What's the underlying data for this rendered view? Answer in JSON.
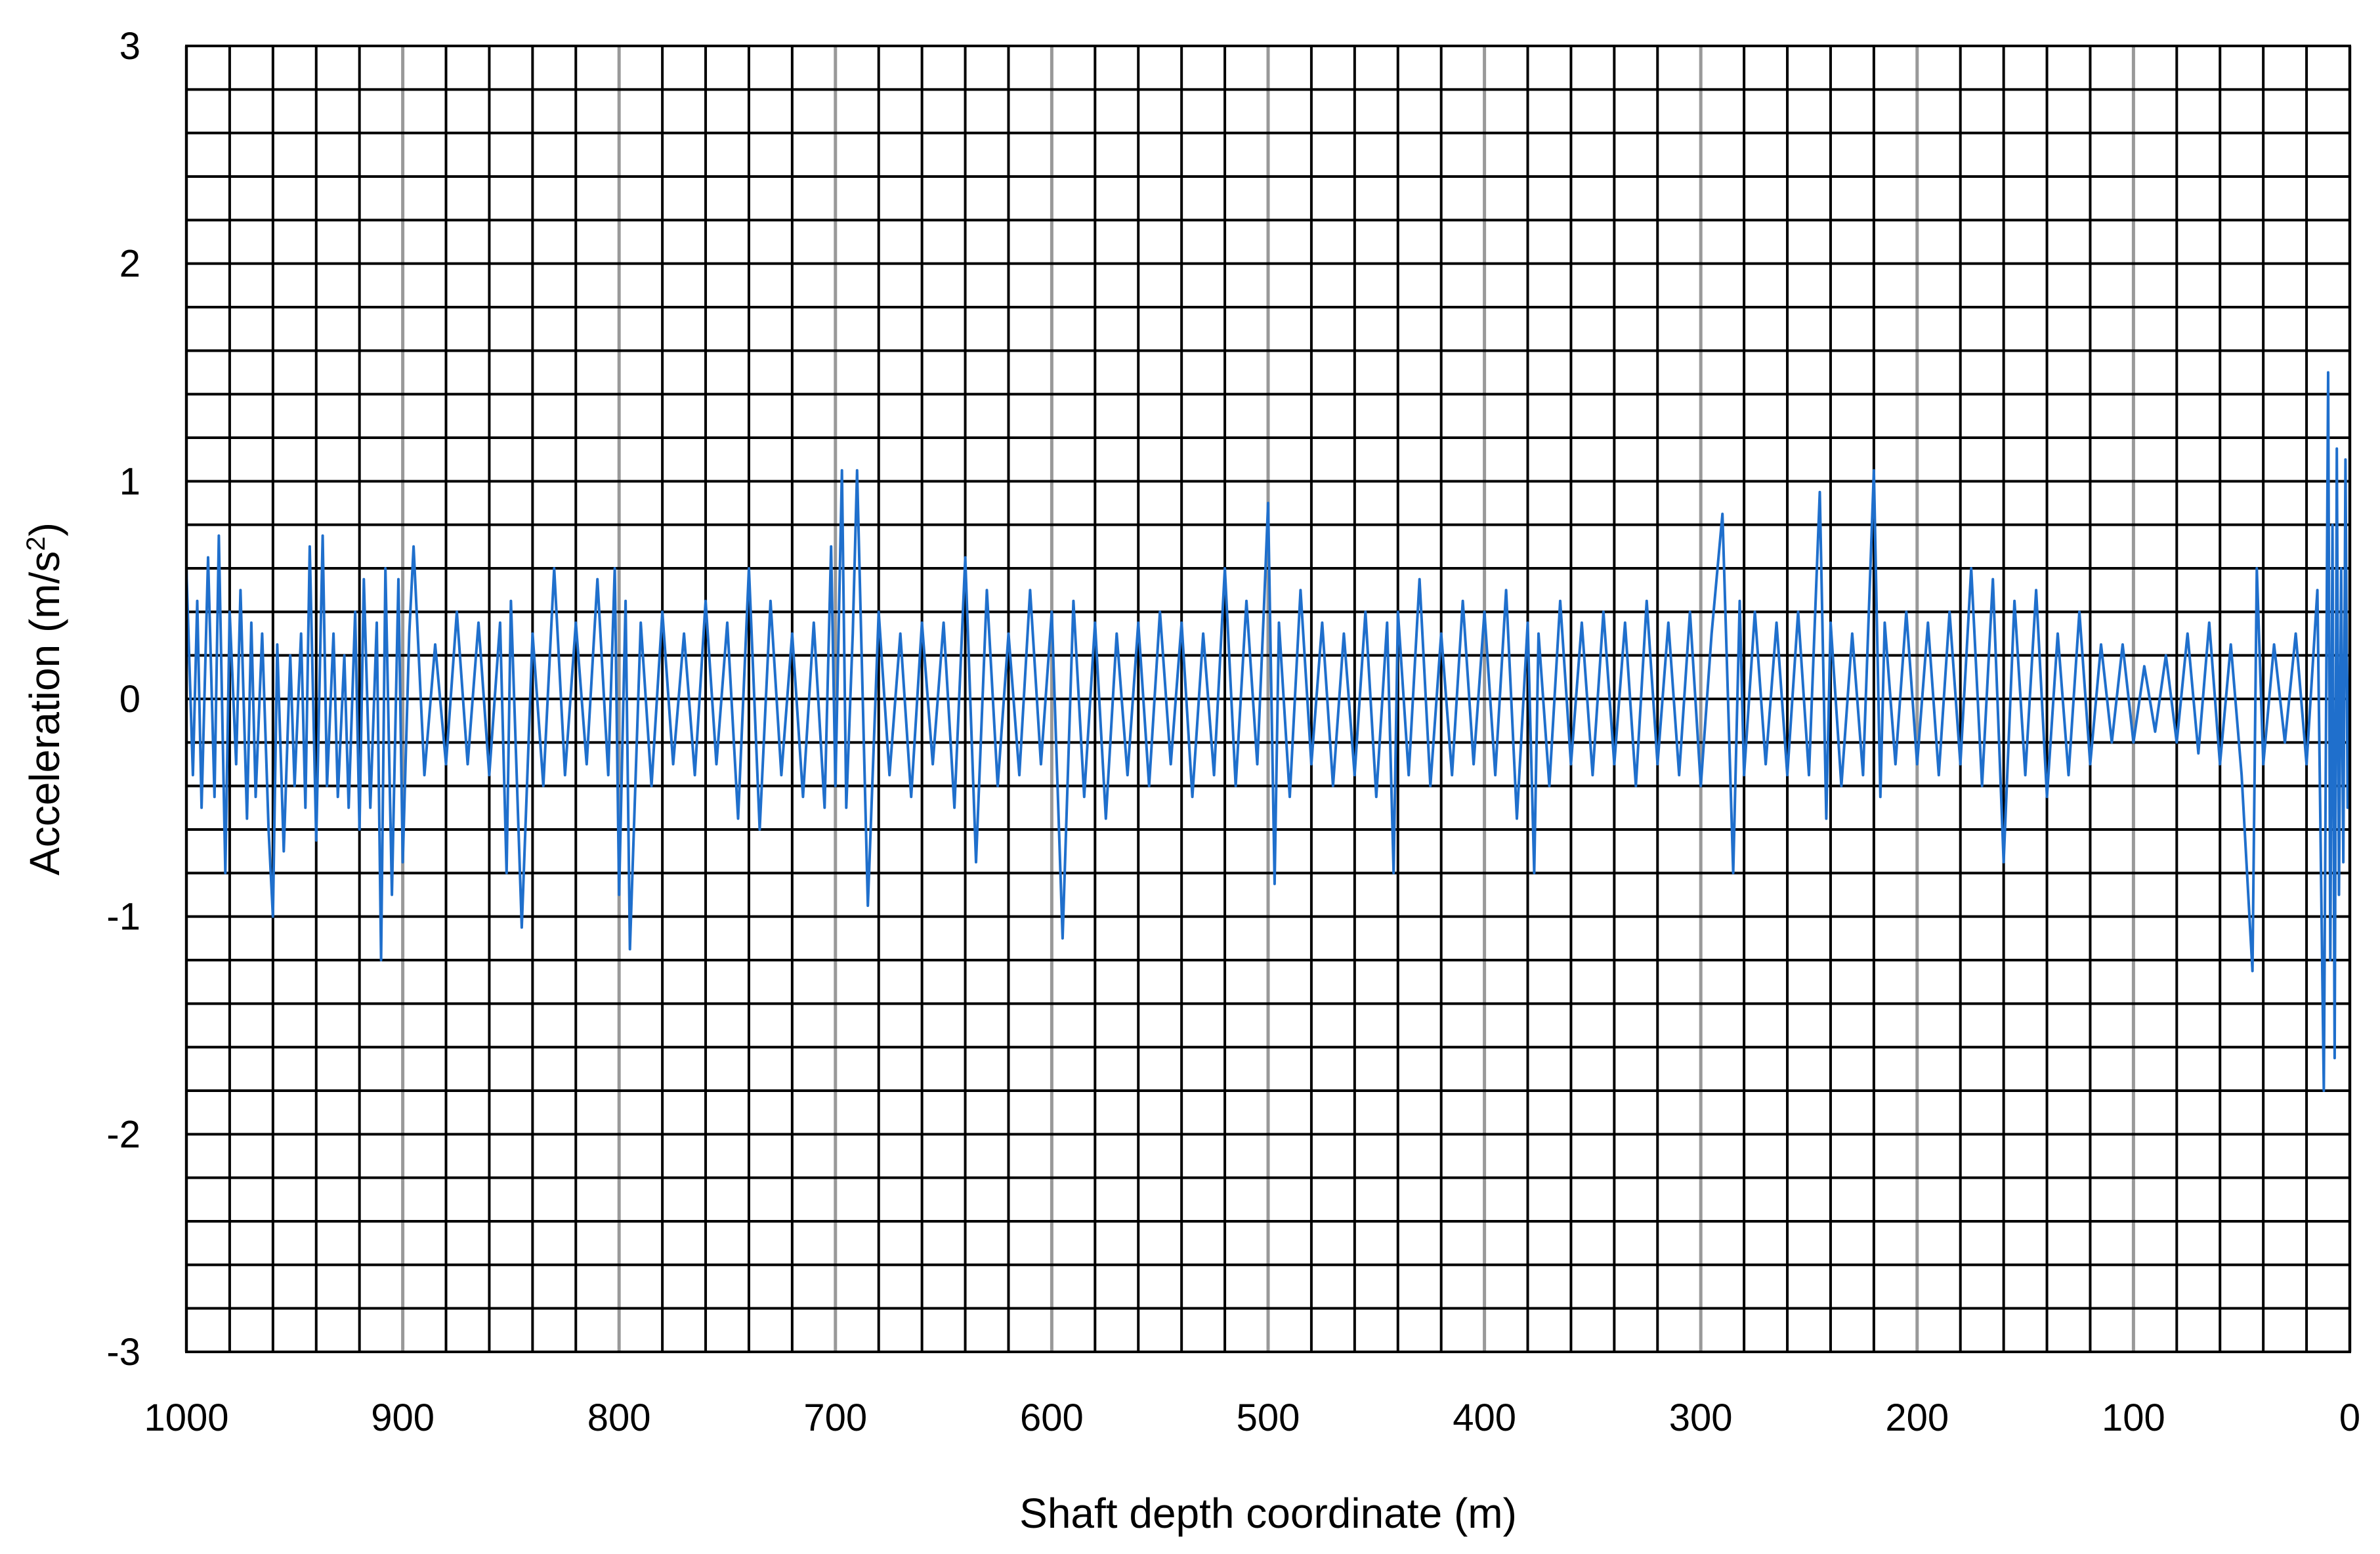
{
  "chart_data": {
    "type": "line",
    "title": "",
    "xlabel": "Shaft depth coordinate (m)",
    "ylabel_main": "Acceleration (m/s",
    "ylabel_sup": "2",
    "ylabel_end": ")",
    "xlim": [
      1000,
      0
    ],
    "x_reversed": true,
    "ylim": [
      -3,
      3
    ],
    "x_ticks": [
      1000,
      900,
      800,
      700,
      600,
      500,
      400,
      300,
      200,
      100,
      0
    ],
    "x_tick_labels": [
      "1000",
      "900",
      "800",
      "700",
      "600",
      "500",
      "400",
      "300",
      "200",
      "100",
      "0"
    ],
    "y_ticks": [
      3,
      2,
      1,
      0,
      -1,
      -2,
      -3
    ],
    "y_tick_labels": [
      "3",
      "2",
      "1",
      "0",
      "-1",
      "-2",
      "-3"
    ],
    "grid": true,
    "grid_x_minor_step": 20,
    "grid_y_minor_step": 0.2,
    "colors": {
      "series": "#1f6fcc",
      "grid_minor": "#000000",
      "grid_major_x": "#999999"
    },
    "series": [
      {
        "name": "",
        "x": [
          1000,
          997,
          995,
          993,
          990,
          987,
          985,
          982,
          980,
          977,
          975,
          972,
          970,
          968,
          965,
          962,
          960,
          958,
          955,
          952,
          950,
          947,
          945,
          943,
          940,
          937,
          935,
          932,
          930,
          927,
          925,
          922,
          920,
          918,
          915,
          912,
          910,
          908,
          905,
          902,
          900,
          897,
          895,
          890,
          885,
          880,
          875,
          870,
          865,
          860,
          855,
          852,
          850,
          845,
          840,
          835,
          830,
          825,
          820,
          815,
          810,
          805,
          802,
          800,
          797,
          795,
          790,
          785,
          780,
          775,
          770,
          765,
          760,
          755,
          750,
          745,
          740,
          735,
          730,
          725,
          720,
          715,
          710,
          705,
          702,
          700,
          697,
          695,
          692,
          690,
          685,
          680,
          675,
          670,
          665,
          660,
          655,
          650,
          645,
          640,
          635,
          630,
          625,
          620,
          615,
          610,
          605,
          600,
          597,
          595,
          590,
          585,
          580,
          575,
          570,
          565,
          560,
          555,
          550,
          545,
          540,
          535,
          530,
          525,
          520,
          515,
          510,
          505,
          502,
          500,
          497,
          495,
          490,
          485,
          480,
          475,
          470,
          465,
          460,
          455,
          450,
          445,
          442,
          440,
          435,
          430,
          425,
          420,
          415,
          410,
          405,
          400,
          395,
          390,
          385,
          380,
          377,
          375,
          370,
          365,
          360,
          355,
          350,
          345,
          340,
          335,
          330,
          325,
          320,
          315,
          310,
          305,
          300,
          295,
          290,
          285,
          282,
          280,
          275,
          270,
          265,
          260,
          255,
          250,
          245,
          242,
          240,
          235,
          230,
          225,
          220,
          217,
          215,
          210,
          205,
          200,
          195,
          190,
          185,
          180,
          175,
          170,
          165,
          160,
          155,
          150,
          145,
          140,
          135,
          130,
          125,
          120,
          115,
          110,
          105,
          100,
          95,
          90,
          85,
          80,
          75,
          70,
          65,
          60,
          55,
          50,
          45,
          43,
          40,
          35,
          30,
          25,
          20,
          15,
          12,
          10,
          9,
          8,
          7,
          6,
          5,
          4,
          3,
          2,
          1,
          0
        ],
        "y": [
          0.6,
          -0.35,
          0.45,
          -0.5,
          0.65,
          -0.45,
          0.75,
          -0.8,
          0.4,
          -0.3,
          0.5,
          -0.55,
          0.35,
          -0.45,
          0.3,
          -0.6,
          -1.0,
          0.25,
          -0.7,
          0.2,
          -0.4,
          0.3,
          -0.5,
          0.7,
          -0.65,
          0.75,
          -0.4,
          0.3,
          -0.45,
          0.2,
          -0.5,
          0.4,
          -0.6,
          0.55,
          -0.5,
          0.35,
          -1.2,
          0.6,
          -0.9,
          0.55,
          -0.75,
          0.3,
          0.7,
          -0.35,
          0.25,
          -0.3,
          0.4,
          -0.3,
          0.35,
          -0.35,
          0.35,
          -0.8,
          0.45,
          -1.05,
          0.3,
          -0.4,
          0.6,
          -0.35,
          0.35,
          -0.3,
          0.55,
          -0.35,
          0.6,
          -0.9,
          0.45,
          -1.15,
          0.35,
          -0.4,
          0.4,
          -0.3,
          0.3,
          -0.35,
          0.45,
          -0.3,
          0.35,
          -0.55,
          0.6,
          -0.6,
          0.45,
          -0.35,
          0.3,
          -0.45,
          0.35,
          -0.5,
          0.7,
          -0.4,
          1.05,
          -0.5,
          0.3,
          1.05,
          -0.95,
          0.4,
          -0.35,
          0.3,
          -0.45,
          0.35,
          -0.3,
          0.35,
          -0.5,
          0.65,
          -0.75,
          0.5,
          -0.4,
          0.3,
          -0.35,
          0.5,
          -0.3,
          0.4,
          -0.5,
          -1.1,
          0.45,
          -0.45,
          0.35,
          -0.55,
          0.3,
          -0.35,
          0.35,
          -0.4,
          0.4,
          -0.3,
          0.35,
          -0.45,
          0.3,
          -0.35,
          0.6,
          -0.4,
          0.45,
          -0.3,
          0.4,
          0.9,
          -0.85,
          0.35,
          -0.45,
          0.5,
          -0.3,
          0.35,
          -0.4,
          0.3,
          -0.35,
          0.4,
          -0.45,
          0.35,
          -0.8,
          0.4,
          -0.35,
          0.55,
          -0.4,
          0.3,
          -0.35,
          0.45,
          -0.3,
          0.4,
          -0.35,
          0.5,
          -0.55,
          0.35,
          -0.8,
          0.3,
          -0.4,
          0.45,
          -0.3,
          0.35,
          -0.35,
          0.4,
          -0.3,
          0.35,
          -0.4,
          0.45,
          -0.3,
          0.35,
          -0.35,
          0.4,
          -0.4,
          0.3,
          0.85,
          -0.8,
          0.45,
          -0.35,
          0.4,
          -0.3,
          0.35,
          -0.35,
          0.4,
          -0.35,
          0.95,
          -0.55,
          0.35,
          -0.4,
          0.3,
          -0.35,
          1.05,
          -0.45,
          0.35,
          -0.3,
          0.4,
          -0.3,
          0.35,
          -0.35,
          0.4,
          -0.3,
          0.6,
          -0.4,
          0.55,
          -0.75,
          0.45,
          -0.35,
          0.5,
          -0.45,
          0.3,
          -0.35,
          0.4,
          -0.3,
          0.25,
          -0.2,
          0.25,
          -0.2,
          0.15,
          -0.15,
          0.2,
          -0.2,
          0.3,
          -0.25,
          0.35,
          -0.3,
          0.25,
          -0.35,
          -1.25,
          0.6,
          -0.3,
          0.25,
          -0.2,
          0.3,
          -0.3,
          0.5,
          -1.8,
          1.5,
          -1.2,
          0.8,
          -1.65,
          1.15,
          -0.9,
          0.6,
          -0.75,
          1.1,
          -0.5,
          0.2
        ]
      }
    ]
  }
}
